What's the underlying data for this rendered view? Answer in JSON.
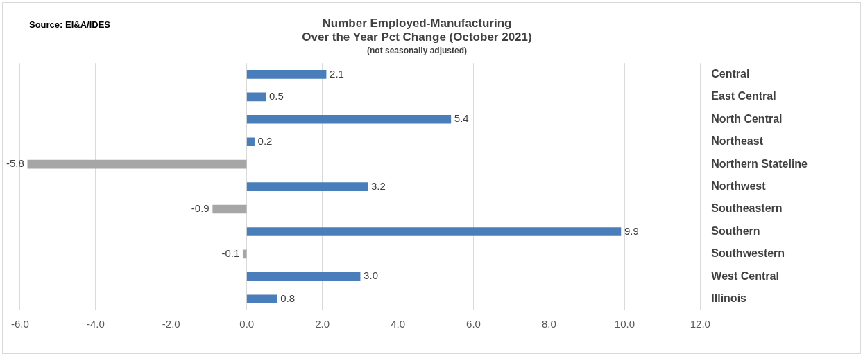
{
  "chart_data": {
    "type": "bar",
    "orientation": "horizontal",
    "title": "Number Employed-Manufacturing\nOver the Year Pct Change (October 2021)",
    "subtitle": "(not seasonally adjusted)",
    "annotations": [
      "Source: EI&A/IDES"
    ],
    "categories": [
      "Central",
      "East Central",
      "North Central",
      "Northeast",
      "Northern Stateline",
      "Northwest",
      "Southeastern",
      "Southern",
      "Southwestern",
      "West Central",
      "Illinois"
    ],
    "values": [
      2.1,
      0.5,
      5.4,
      0.2,
      -5.8,
      3.2,
      -0.9,
      9.9,
      -0.1,
      3.0,
      0.8
    ],
    "value_labels": [
      "2.1",
      "0.5",
      "5.4",
      "0.2",
      "-5.8",
      "3.2",
      "-0.9",
      "9.9",
      "-0.1",
      "3.0",
      "0.8"
    ],
    "colors": [
      "#4a7ebb",
      "#4a7ebb",
      "#4a7ebb",
      "#4a7ebb",
      "#a6a6a6",
      "#4a7ebb",
      "#a6a6a6",
      "#4a7ebb",
      "#a6a6a6",
      "#4a7ebb",
      "#4a7ebb"
    ],
    "xlim": [
      -6,
      12
    ],
    "xticks": [
      {
        "value": -6,
        "label": "-6.0"
      },
      {
        "value": -4,
        "label": "-4.0"
      },
      {
        "value": -2,
        "label": "-2.0"
      },
      {
        "value": 0,
        "label": "0.0"
      },
      {
        "value": 2,
        "label": "2.0"
      },
      {
        "value": 4,
        "label": "4.0"
      },
      {
        "value": 6,
        "label": "6.0"
      },
      {
        "value": 8,
        "label": "8.0"
      },
      {
        "value": 10,
        "label": "10.0"
      },
      {
        "value": 12,
        "label": "12.0"
      }
    ],
    "grid": "x",
    "legend": false
  }
}
